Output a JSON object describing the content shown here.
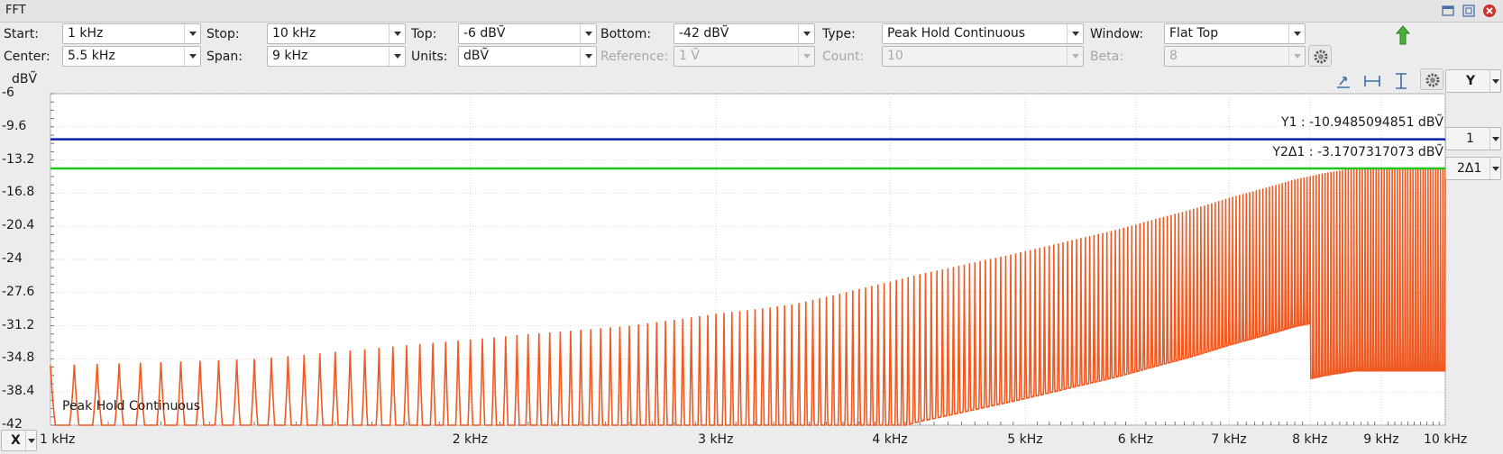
{
  "window": {
    "title": "FFT",
    "buttons": [
      "restore-icon",
      "maximize-icon",
      "close-icon"
    ]
  },
  "controls": {
    "start": {
      "label": "Start:",
      "value": "1 kHz"
    },
    "stop": {
      "label": "Stop:",
      "value": "10 kHz"
    },
    "top": {
      "label": "Top:",
      "value": "-6 dBṼ"
    },
    "bottom": {
      "label": "Bottom:",
      "value": "-42 dBṼ"
    },
    "type": {
      "label": "Type:",
      "value": "Peak Hold Continuous"
    },
    "window": {
      "label": "Window:",
      "value": "Flat Top"
    },
    "center": {
      "label": "Center:",
      "value": "5.5 kHz"
    },
    "span": {
      "label": "Span:",
      "value": "9 kHz"
    },
    "units": {
      "label": "Units:",
      "value": "dBṼ"
    },
    "reference": {
      "label": "Reference:",
      "value": "1 Ṽ",
      "enabled": false
    },
    "count": {
      "label": "Count:",
      "value": "10",
      "enabled": false
    },
    "beta": {
      "label": "Beta:",
      "value": "8",
      "enabled": false
    }
  },
  "toolbar": {
    "icons": [
      "green-arrow-up-icon",
      "settings-gear-icon",
      "cursor-pointer-icon",
      "horizontal-cursor-icon",
      "vertical-cursor-icon",
      "plot-settings-gear-icon"
    ],
    "y_axis_select": "Y",
    "x_axis_select": "X"
  },
  "plot": {
    "y_unit": "dBṼ",
    "y_ticks": [
      "-6",
      "-9.6",
      "-13.2",
      "-16.8",
      "-20.4",
      "-24",
      "-27.6",
      "-31.2",
      "-34.8",
      "-38.4",
      "-42"
    ],
    "x_ticks": [
      "1 kHz",
      "2 kHz",
      "3 kHz",
      "4 kHz",
      "5 kHz",
      "6 kHz",
      "7 kHz",
      "8 kHz",
      "9 kHz",
      "10 kHz"
    ],
    "trace_label": "Peak Hold Continuous",
    "trace_color": "#f05a22",
    "cursor1": {
      "label": "Y1 : -10.9485094851 dBṼ",
      "value": -10.9485094851,
      "color": "#0b1fa8",
      "select": "1"
    },
    "cursor2": {
      "label": "Y2Δ1 : -3.1707317073 dBṼ",
      "value": -14.1192411924,
      "color": "#1ec41e",
      "select": "2Δ1"
    }
  },
  "chart_data": {
    "type": "line",
    "xlabel": "",
    "ylabel": "dBṼ",
    "x_scale": "log",
    "xlim": [
      1000,
      10000
    ],
    "ylim": [
      -42,
      -6
    ],
    "series": [
      {
        "name": "Peak Hold Continuous",
        "peaks_x_hz": [
          1000,
          1400,
          1800,
          2200,
          2600,
          3000,
          3400,
          3800,
          4200,
          4600,
          5000,
          5400,
          5800,
          6200,
          6600,
          7000,
          7400,
          7800,
          8200,
          8600,
          9000,
          9400,
          9800
        ],
        "peaks_y_dbv": [
          -35.5,
          -34.8,
          -33.3,
          -32.1,
          -31.2,
          -29.9,
          -28.9,
          -27.2,
          -25.6,
          -24.3,
          -23.1,
          -21.9,
          -20.8,
          -19.6,
          -18.5,
          -17.3,
          -16.3,
          -15.3,
          -14.6,
          -14.1,
          -14.1,
          -14.1,
          -14.1
        ],
        "floor_y_dbv": -42
      }
    ]
  }
}
